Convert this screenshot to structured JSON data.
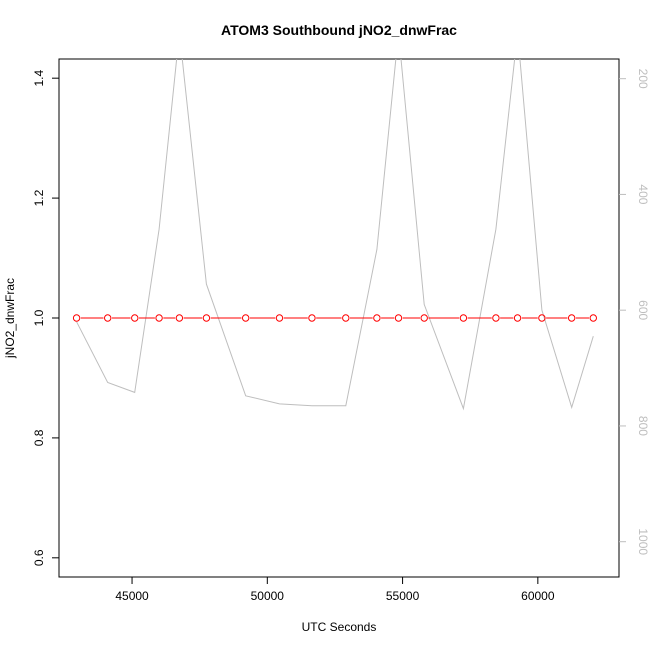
{
  "chart_data": {
    "type": "line",
    "title": "ATOM3 Southbound jNO2_dnwFrac",
    "xlabel": "UTC Seconds",
    "ylabel": "jNO2_dnwFrac",
    "xlim": [
      42300,
      63000
    ],
    "ylim": [
      0.568,
      1.432
    ],
    "x_ticks": [
      45000,
      50000,
      55000,
      60000
    ],
    "x_tick_labels": [
      "45000",
      "50000",
      "55000",
      "60000"
    ],
    "y_ticks": [
      0.6,
      0.8,
      1.0,
      1.2,
      1.4
    ],
    "y_tick_labels": [
      "0.6",
      "0.8",
      "1.0",
      "1.2",
      "1.4"
    ],
    "y2_ticks": [
      200,
      400,
      600,
      800,
      1000
    ],
    "y2_tick_labels": [
      "200",
      "400",
      "600",
      "800",
      "1000"
    ],
    "y2_lim": [
      1061,
      166
    ],
    "grid": false,
    "series": [
      {
        "type": "line+points",
        "color": "#ff0000",
        "marker": "open-circle",
        "axis": "left",
        "x": [
          42950,
          44100,
          45100,
          46000,
          46750,
          47750,
          49200,
          50450,
          51650,
          52900,
          54050,
          54850,
          55800,
          57250,
          58450,
          59250,
          60150,
          61250,
          62050
        ],
        "y": [
          1.0,
          1.0,
          1.0,
          1.0,
          1.0,
          1.0,
          1.0,
          1.0,
          1.0,
          1.0,
          1.0,
          1.0,
          1.0,
          1.0,
          1.0,
          1.0,
          1.0,
          1.0,
          1.0
        ]
      },
      {
        "type": "line",
        "color": "#bebebe",
        "axis": "right",
        "x": [
          42950,
          44100,
          45100,
          46000,
          46750,
          47750,
          49200,
          50450,
          51650,
          52900,
          54050,
          54850,
          55800,
          57250,
          58450,
          59250,
          60150,
          61250,
          62050
        ],
        "y": [
          620,
          725,
          742,
          460,
          120,
          555,
          748,
          762,
          765,
          765,
          495,
          120,
          590,
          770,
          460,
          120,
          600,
          768,
          645
        ]
      }
    ]
  }
}
